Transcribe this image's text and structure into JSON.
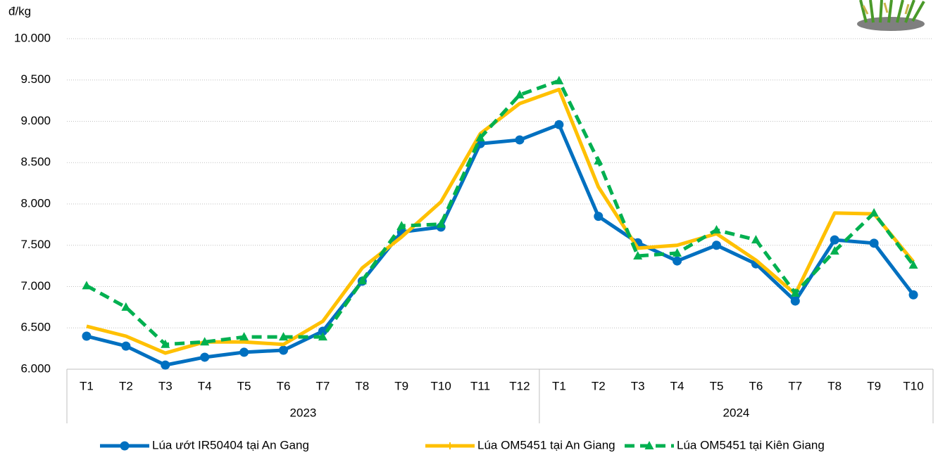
{
  "chart_data": {
    "type": "line",
    "y_unit": "đ/kg",
    "groups": [
      {
        "name": "2023",
        "categories": [
          "T1",
          "T2",
          "T3",
          "T4",
          "T5",
          "T6",
          "T7",
          "T8",
          "T9",
          "T10",
          "T11",
          "T12"
        ]
      },
      {
        "name": "2024",
        "categories": [
          "T1",
          "T2",
          "T3",
          "T4",
          "T5",
          "T6",
          "T7",
          "T8",
          "T9",
          "T10"
        ]
      }
    ],
    "series": [
      {
        "name": "Lúa ướt IR50404 tại An Gang",
        "color": "#0070c0",
        "marker": "circle",
        "dashed": false,
        "values": [
          6400,
          6280,
          6050,
          6145,
          6205,
          6230,
          6460,
          7065,
          7660,
          7720,
          8730,
          8775,
          8960,
          7850,
          7530,
          7310,
          7500,
          7275,
          6825,
          7565,
          7525,
          6900
        ]
      },
      {
        "name": "Lúa OM5451 tại An Giang",
        "color": "#ffc000",
        "marker": "plus",
        "dashed": false,
        "values": [
          6520,
          6400,
          6195,
          6330,
          6330,
          6300,
          6580,
          7225,
          7600,
          8025,
          8850,
          9215,
          9385,
          8205,
          7465,
          7500,
          7640,
          7320,
          6910,
          7890,
          7880,
          7300
        ]
      },
      {
        "name": "Lúa OM5451 tại Kiên Giang",
        "color": "#00b050",
        "marker": "triangle",
        "dashed": true,
        "values": [
          7010,
          6750,
          6300,
          6330,
          6390,
          6390,
          6390,
          7070,
          7735,
          7755,
          8800,
          9320,
          9490,
          8520,
          7370,
          7405,
          7685,
          7565,
          6920,
          7430,
          7890,
          7260
        ]
      }
    ],
    "ylim": [
      6000,
      10000
    ],
    "yticks": [
      {
        "value": 6000,
        "label": "6.000"
      },
      {
        "value": 6500,
        "label": "6.500"
      },
      {
        "value": 7000,
        "label": "7.000"
      },
      {
        "value": 7500,
        "label": "7.500"
      },
      {
        "value": 8000,
        "label": "8.000"
      },
      {
        "value": 8500,
        "label": "8.500"
      },
      {
        "value": 9000,
        "label": "9.000"
      },
      {
        "value": 9500,
        "label": "9.500"
      },
      {
        "value": 10000,
        "label": "10.000"
      }
    ],
    "grid": true
  }
}
